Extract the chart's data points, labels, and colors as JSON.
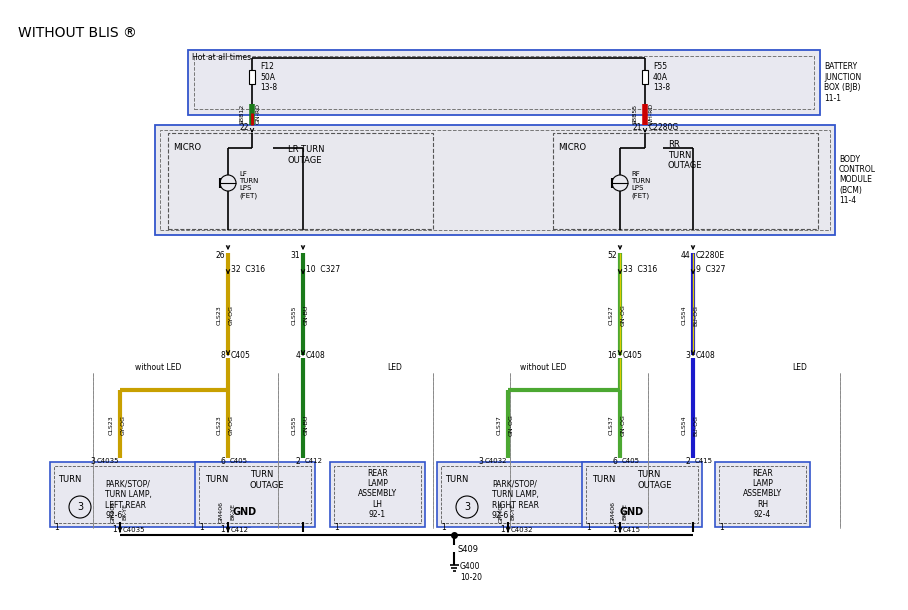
{
  "bg_color": "#ffffff",
  "title": "WITHOUT BLIS ®",
  "hot_label": "Hot at all times",
  "bjb_label": "BATTERY\nJUNCTION\nBOX (BJB)\n11-1",
  "bcm_label": "BODY\nCONTROL\nMODULE\n(BCM)\n11-4",
  "colors": {
    "gy_og": "#c8a000",
    "gn_bu": "#1a7a1a",
    "bu_og": "#1a1acc",
    "gn_og": "#4ca832",
    "black": "#000000",
    "red": "#cc0000",
    "box_border": "#3355cc",
    "box_fill": "#e8e8f0",
    "bcm_fill": "#e8e8ee",
    "dashed_color": "#555555"
  }
}
